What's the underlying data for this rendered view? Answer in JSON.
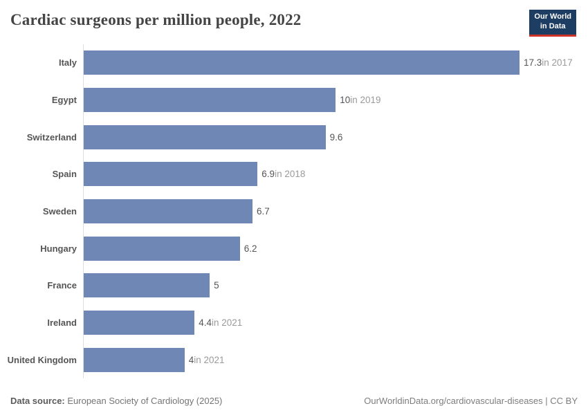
{
  "header": {
    "title": "Cardiac surgeons per million people, 2022",
    "logo": {
      "line1": "Our World",
      "line2": "in Data"
    }
  },
  "chart_data": {
    "type": "bar",
    "orientation": "horizontal",
    "title": "Cardiac surgeons per million people, 2022",
    "categories": [
      "Italy",
      "Egypt",
      "Switzerland",
      "Spain",
      "Sweden",
      "Hungary",
      "France",
      "Ireland",
      "United Kingdom"
    ],
    "values": [
      17.3,
      10,
      9.6,
      6.9,
      6.7,
      6.2,
      5,
      4.4,
      4
    ],
    "value_labels": [
      "17.3",
      "10",
      "9.6",
      "6.9",
      "6.7",
      "6.2",
      "5",
      "4.4",
      "4"
    ],
    "year_notes": [
      "in 2017",
      "in 2019",
      "",
      "in 2018",
      "",
      "",
      "",
      "in 2021",
      "in 2021"
    ],
    "xlim": [
      0,
      17.3
    ],
    "grid": false,
    "legend": "none",
    "bar_color": "#6e87b4",
    "axis_line_color": "#dedede"
  },
  "footer": {
    "datasource_label": "Data source:",
    "datasource_value": " European Society of Cardiology (2025)",
    "attribution": "OurWorldinData.org/cardiovascular-diseases | CC BY"
  }
}
